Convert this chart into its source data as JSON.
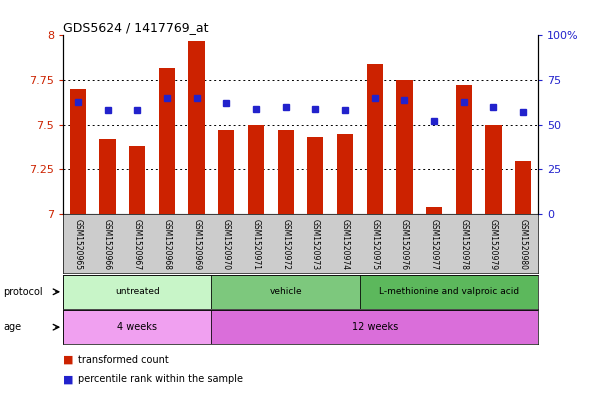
{
  "title": "GDS5624 / 1417769_at",
  "samples": [
    "GSM1520965",
    "GSM1520966",
    "GSM1520967",
    "GSM1520968",
    "GSM1520969",
    "GSM1520970",
    "GSM1520971",
    "GSM1520972",
    "GSM1520973",
    "GSM1520974",
    "GSM1520975",
    "GSM1520976",
    "GSM1520977",
    "GSM1520978",
    "GSM1520979",
    "GSM1520980"
  ],
  "red_values": [
    7.7,
    7.42,
    7.38,
    7.82,
    7.97,
    7.47,
    7.5,
    7.47,
    7.43,
    7.45,
    7.84,
    7.75,
    7.04,
    7.72,
    7.5,
    7.3
  ],
  "blue_values": [
    7.63,
    7.58,
    7.58,
    7.65,
    7.65,
    7.62,
    7.59,
    7.6,
    7.59,
    7.58,
    7.65,
    7.64,
    7.52,
    7.63,
    7.6,
    7.57
  ],
  "ylim_left": [
    7.0,
    8.0
  ],
  "ylim_right": [
    0,
    100
  ],
  "yticks_left": [
    7.0,
    7.25,
    7.5,
    7.75,
    8.0
  ],
  "yticks_right": [
    0,
    25,
    50,
    75,
    100
  ],
  "ytick_labels_left": [
    "7",
    "7.25",
    "7.5",
    "7.75",
    "8"
  ],
  "ytick_labels_right": [
    "0",
    "25",
    "50",
    "75",
    "100%"
  ],
  "protocol_groups": [
    {
      "label": "untreated",
      "start": 0,
      "end": 5
    },
    {
      "label": "vehicle",
      "start": 5,
      "end": 10
    },
    {
      "label": "L-methionine and valproic acid",
      "start": 10,
      "end": 16
    }
  ],
  "protocol_colors": [
    "#C8F5C8",
    "#7DC87D",
    "#5CB85C"
  ],
  "age_groups": [
    {
      "label": "4 weeks",
      "start": 0,
      "end": 5
    },
    {
      "label": "12 weeks",
      "start": 5,
      "end": 16
    }
  ],
  "age_colors": [
    "#F0A0F0",
    "#DA6EDA"
  ],
  "bar_color": "#CC2200",
  "blue_color": "#2222CC",
  "left_tick_color": "#CC2200",
  "right_tick_color": "#2222CC",
  "bar_width": 0.55,
  "legend_items": [
    {
      "label": "transformed count",
      "color": "#CC2200"
    },
    {
      "label": "percentile rank within the sample",
      "color": "#2222CC"
    }
  ]
}
